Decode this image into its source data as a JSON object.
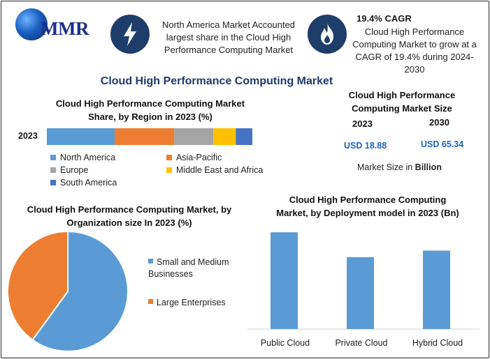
{
  "logo": {
    "text": "MMR"
  },
  "header": {
    "fact1": "North America Market Accounted largest share in the Cloud High Performance Computing Market",
    "cagr_label": "19.4% CAGR",
    "fact2": "Cloud High Performance Computing Market to grow at a CAGR of 19.4% during 2024-2030",
    "icon1": "lightning-icon",
    "icon2": "flame-icon"
  },
  "main_title": "Cloud High Performance Computing Market",
  "market_size": {
    "title": "Cloud High Performance Computing Market Size",
    "year1": "2023",
    "year2": "2030",
    "value1": "USD 18.88",
    "value2": "USD 65.34",
    "note_prefix": "Market Size in ",
    "note_bold": "Billion"
  },
  "colors": {
    "blue": "#5b9bd5",
    "orange": "#ed7d31",
    "gray": "#a5a5a5",
    "yellow": "#ffc000",
    "darkblue": "#4472c4",
    "navy": "#1e3d6b"
  },
  "chart_data": [
    {
      "type": "bar",
      "orientation": "horizontal-stacked",
      "title": "Cloud High Performance Computing Market Share, by Region in 2023 (%)",
      "categories": [
        "2023"
      ],
      "series": [
        {
          "name": "North America",
          "values": [
            33
          ],
          "color": "#5b9bd5"
        },
        {
          "name": "Asia-Pacific",
          "values": [
            29
          ],
          "color": "#ed7d31"
        },
        {
          "name": "Europe",
          "values": [
            19
          ],
          "color": "#a5a5a5"
        },
        {
          "name": "Middle East and Africa",
          "values": [
            11
          ],
          "color": "#ffc000"
        },
        {
          "name": "South America",
          "values": [
            8
          ],
          "color": "#4472c4"
        }
      ],
      "legend": "bottom"
    },
    {
      "type": "pie",
      "title": "Cloud High Performance Computing Market, by Organization size In 2023 (%)",
      "labels": [
        "Small and Medium Businesses",
        "Large Enterprises"
      ],
      "values": [
        60,
        40
      ],
      "colors": [
        "#5b9bd5",
        "#ed7d31"
      ],
      "legend": "right"
    },
    {
      "type": "bar",
      "title": "Cloud High Performance Computing Market, by Deployment model in 2023 (Bn)",
      "categories": [
        "Public Cloud",
        "Private Cloud",
        "Hybrid Cloud"
      ],
      "values": [
        7.4,
        5.5,
        6.0
      ],
      "ylim": [
        0,
        8
      ],
      "color": "#5b9bd5"
    }
  ]
}
